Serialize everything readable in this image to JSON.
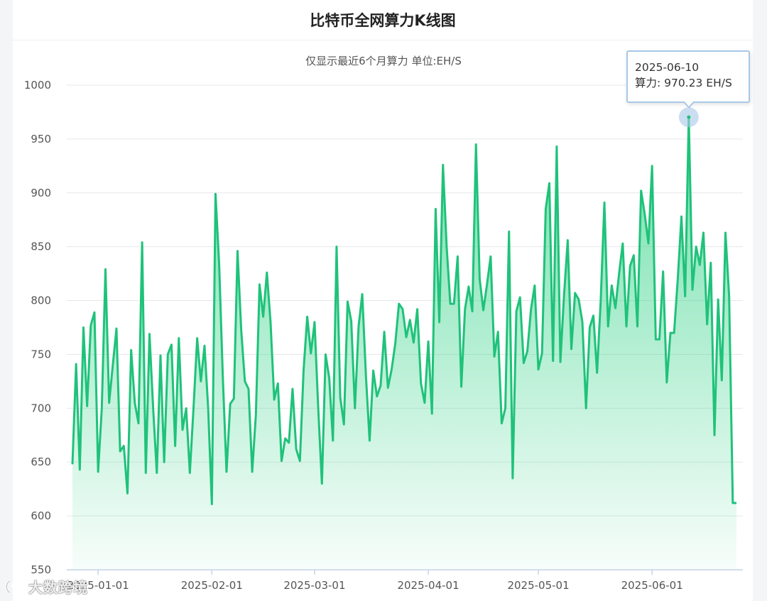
{
  "header": {
    "title": "比特币全网算力K线图"
  },
  "chart_data": {
    "type": "area",
    "title": "比特币全网算力K线图",
    "subtitle": "仅显示最近6个月算力 单位:EH/S",
    "ylim": [
      550,
      1000
    ],
    "yticks": [
      550,
      600,
      650,
      700,
      750,
      800,
      850,
      900,
      950,
      1000
    ],
    "x_start": "2024-12-25",
    "xticks": [
      {
        "date": "2025-01-01",
        "label": "2025-01-01"
      },
      {
        "date": "2025-02-01",
        "label": "2025-02-01"
      },
      {
        "date": "2025-03-01",
        "label": "2025-03-01"
      },
      {
        "date": "2025-04-01",
        "label": "2025-04-01"
      },
      {
        "date": "2025-05-01",
        "label": "2025-05-01"
      },
      {
        "date": "2025-06-01",
        "label": "2025-06-01"
      }
    ],
    "series": [
      {
        "name": "算力",
        "color": "#1fc27a",
        "values": [
          648,
          741,
          643,
          775,
          702,
          777,
          789,
          641,
          700,
          829,
          705,
          740,
          774,
          660,
          665,
          621,
          754,
          705,
          686,
          854,
          640,
          769,
          700,
          640,
          749,
          650,
          750,
          759,
          665,
          765,
          680,
          700,
          640,
          700,
          765,
          725,
          758,
          700,
          611,
          899,
          833,
          728,
          641,
          704,
          709,
          846,
          773,
          725,
          718,
          641,
          694,
          815,
          785,
          826,
          780,
          708,
          723,
          651,
          672,
          668,
          718,
          662,
          651,
          735,
          785,
          751,
          780,
          700,
          630,
          750,
          728,
          670,
          850,
          710,
          685,
          799,
          781,
          700,
          776,
          806,
          730,
          670,
          735,
          711,
          721,
          771,
          719,
          736,
          760,
          797,
          792,
          766,
          782,
          761,
          792,
          723,
          705,
          762,
          695,
          885,
          780,
          926,
          850,
          797,
          797,
          841,
          720,
          792,
          813,
          790,
          945,
          820,
          791,
          815,
          841,
          748,
          771,
          686,
          700,
          864,
          635,
          790,
          803,
          742,
          753,
          792,
          814,
          736,
          751,
          885,
          909,
          744,
          943,
          743,
          805,
          856,
          755,
          807,
          801,
          780,
          700,
          775,
          786,
          733,
          800,
          891,
          776,
          814,
          793,
          825,
          853,
          776,
          832,
          842,
          776,
          902,
          880,
          853,
          925,
          764,
          764,
          827,
          724,
          770,
          770,
          820,
          878,
          804,
          970.23,
          810,
          850,
          833,
          863,
          778,
          835,
          675,
          801,
          726,
          863,
          804,
          612,
          612
        ]
      }
    ],
    "tooltip": {
      "date": "2025-06-10",
      "label": "算力: 970.23 EH/S"
    },
    "grid": true,
    "legend": "none"
  },
  "watermark": {
    "text": "大数跨境"
  }
}
